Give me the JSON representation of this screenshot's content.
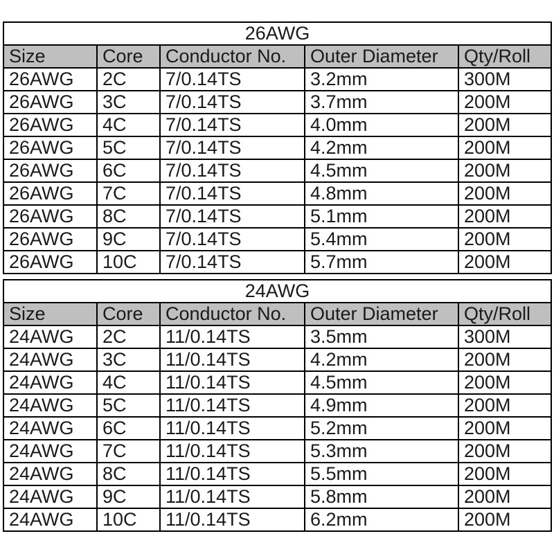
{
  "page": {
    "background": "#ffffff",
    "text_color": "#1a1a1a",
    "border_color": "#000000",
    "header_bg": "#bfbfbf"
  },
  "tables": [
    {
      "title": "26AWG",
      "columns": [
        "Size",
        "Core",
        "Conductor No.",
        "Outer Diameter",
        "Qty/Roll"
      ],
      "rows": [
        [
          "26AWG",
          "2C",
          "7/0.14TS",
          "3.2mm",
          "300M"
        ],
        [
          "26AWG",
          "3C",
          "7/0.14TS",
          "3.7mm",
          "200M"
        ],
        [
          "26AWG",
          "4C",
          "7/0.14TS",
          "4.0mm",
          "200M"
        ],
        [
          "26AWG",
          "5C",
          "7/0.14TS",
          "4.2mm",
          "200M"
        ],
        [
          "26AWG",
          "6C",
          "7/0.14TS",
          "4.5mm",
          "200M"
        ],
        [
          "26AWG",
          "7C",
          "7/0.14TS",
          "4.8mm",
          "200M"
        ],
        [
          "26AWG",
          "8C",
          "7/0.14TS",
          "5.1mm",
          "200M"
        ],
        [
          "26AWG",
          "9C",
          "7/0.14TS",
          "5.4mm",
          "200M"
        ],
        [
          "26AWG",
          "10C",
          "7/0.14TS",
          "5.7mm",
          "200M"
        ]
      ]
    },
    {
      "title": "24AWG",
      "columns": [
        "Size",
        "Core",
        "Conductor No.",
        "Outer Diameter",
        "Qty/Roll"
      ],
      "rows": [
        [
          "24AWG",
          "2C",
          "11/0.14TS",
          "3.5mm",
          "300M"
        ],
        [
          "24AWG",
          "3C",
          "11/0.14TS",
          "4.2mm",
          "200M"
        ],
        [
          "24AWG",
          "4C",
          "11/0.14TS",
          "4.5mm",
          "200M"
        ],
        [
          "24AWG",
          "5C",
          "11/0.14TS",
          "4.9mm",
          "200M"
        ],
        [
          "24AWG",
          "6C",
          "11/0.14TS",
          "5.2mm",
          "200M"
        ],
        [
          "24AWG",
          "7C",
          "11/0.14TS",
          "5.3mm",
          "200M"
        ],
        [
          "24AWG",
          "8C",
          "11/0.14TS",
          "5.5mm",
          "200M"
        ],
        [
          "24AWG",
          "9C",
          "11/0.14TS",
          "5.8mm",
          "200M"
        ],
        [
          "24AWG",
          "10C",
          "11/0.14TS",
          "6.2mm",
          "200M"
        ]
      ]
    }
  ]
}
